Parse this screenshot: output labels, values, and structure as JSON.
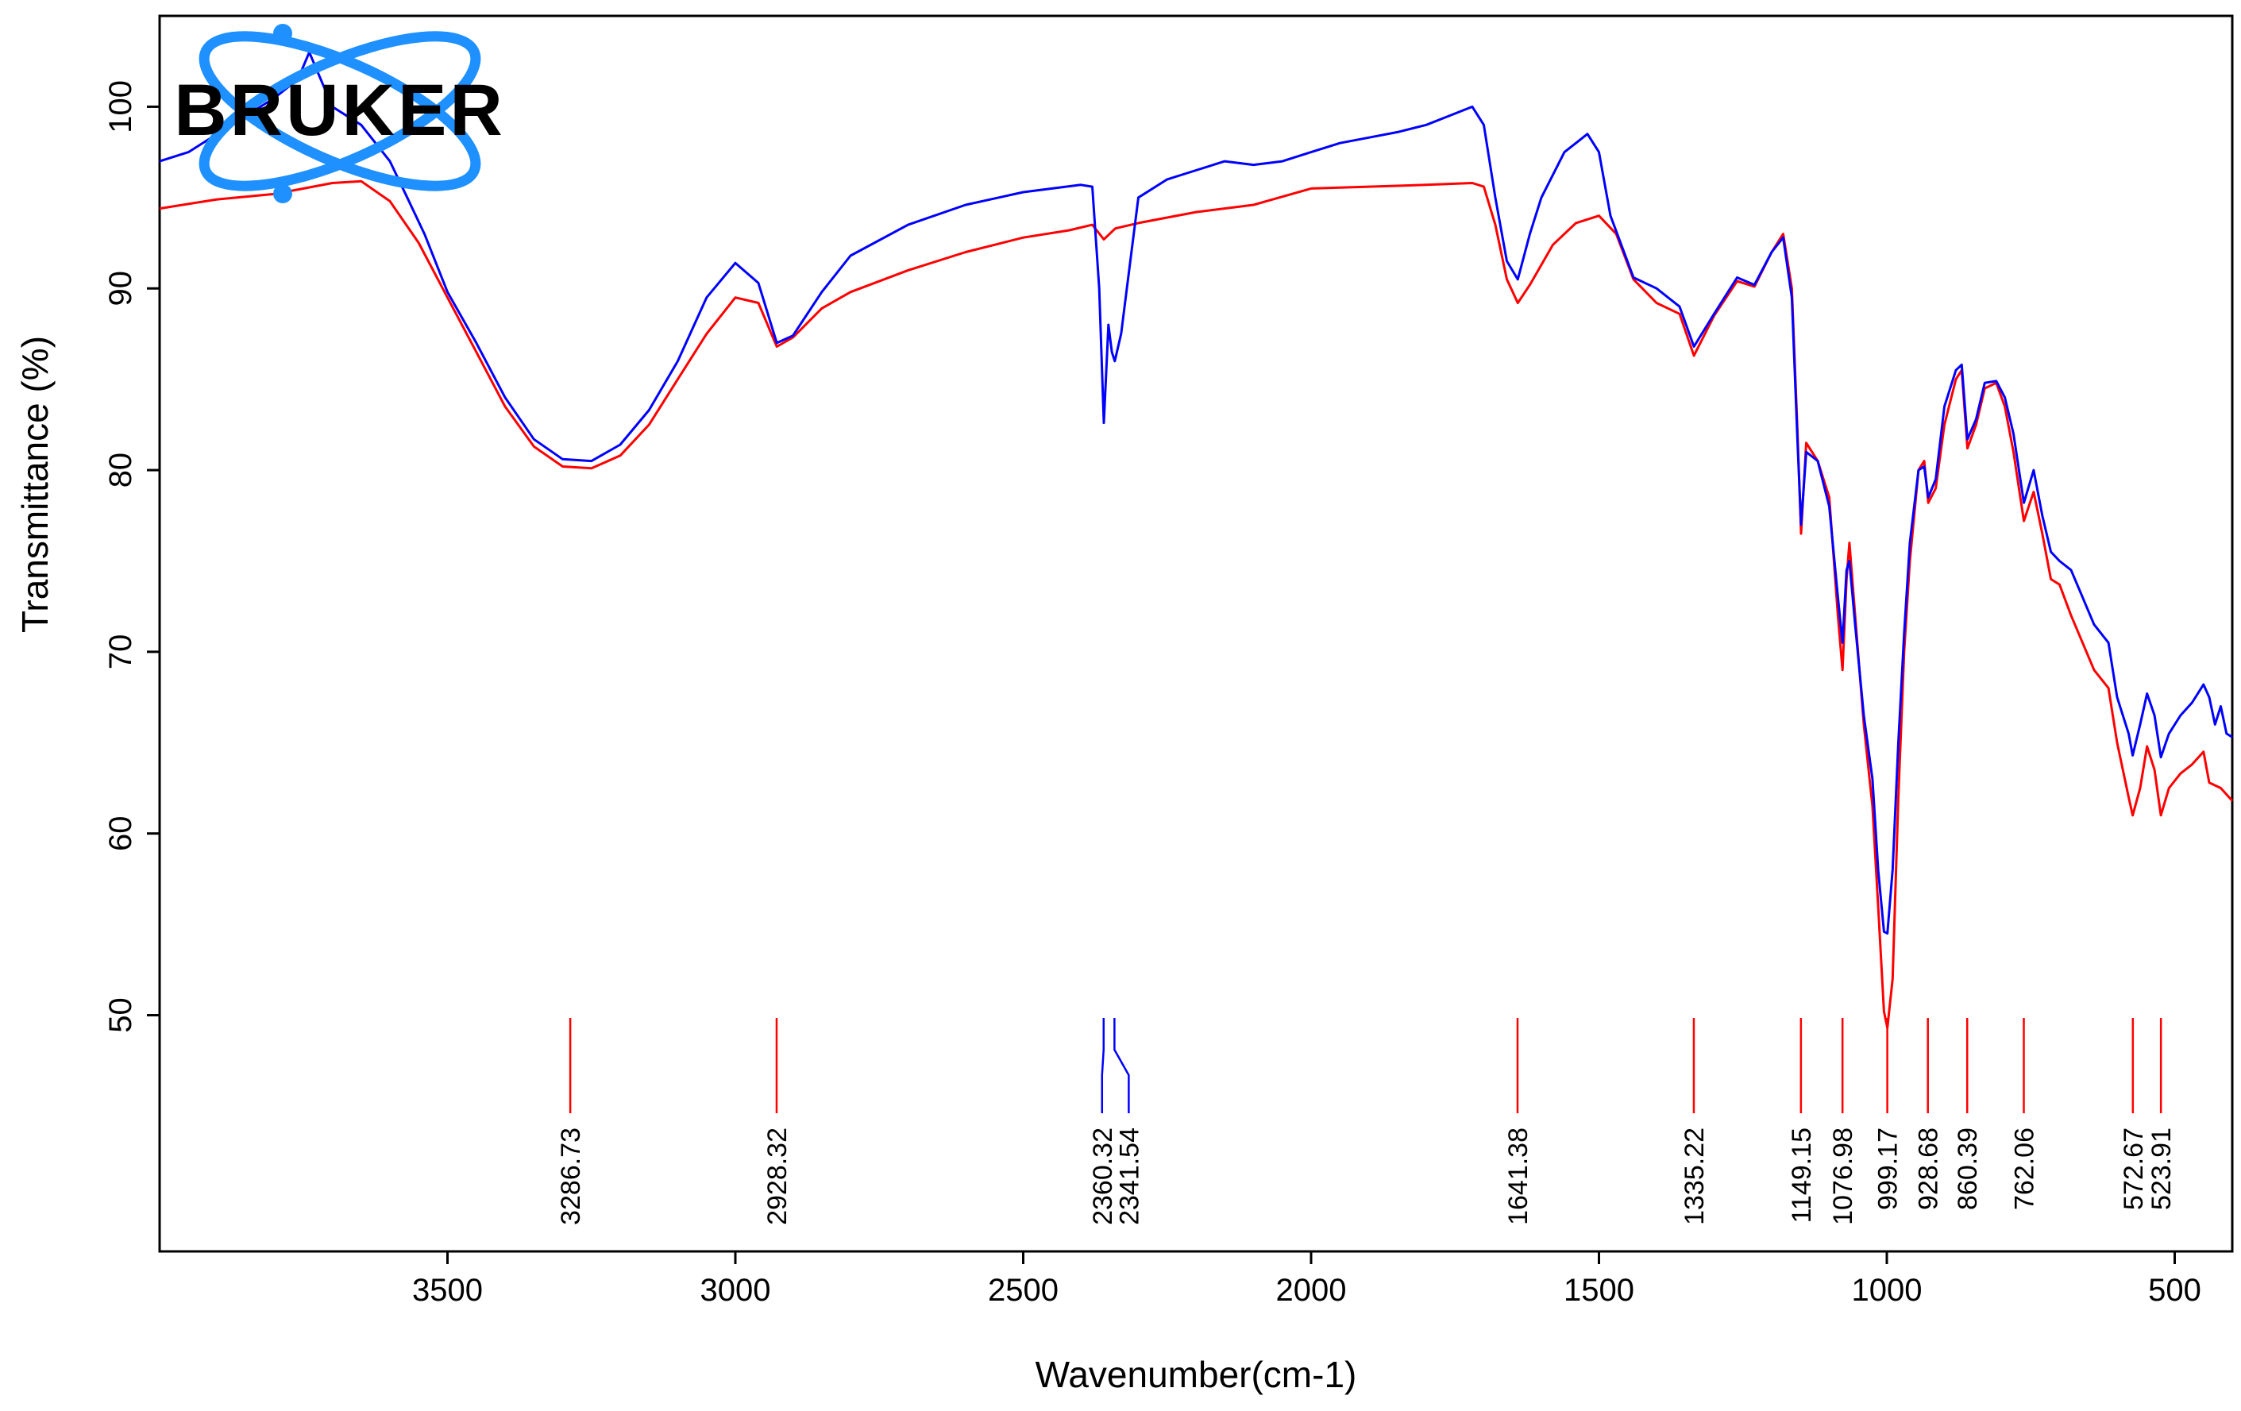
{
  "chart_data": {
    "type": "line",
    "title": "",
    "xlabel": "Wavenumber(cm-1)",
    "ylabel": "Transmittance (%)",
    "xlim": [
      4000,
      400
    ],
    "ylim": [
      37,
      105
    ],
    "x_reversed": true,
    "x_ticks": [
      3500,
      3000,
      2500,
      2000,
      1500,
      1000,
      500
    ],
    "y_ticks": [
      50,
      60,
      70,
      80,
      90,
      100
    ],
    "grid": false,
    "legend": "none",
    "logo_text": "BRUKER",
    "series": [
      {
        "color": "#ff0000",
        "points": [
          [
            4000,
            94.4
          ],
          [
            3900,
            94.9
          ],
          [
            3800,
            95.2
          ],
          [
            3750,
            95.5
          ],
          [
            3700,
            95.8
          ],
          [
            3650,
            95.9
          ],
          [
            3600,
            94.8
          ],
          [
            3550,
            92.5
          ],
          [
            3500,
            89.5
          ],
          [
            3450,
            86.5
          ],
          [
            3400,
            83.5
          ],
          [
            3350,
            81.3
          ],
          [
            3300,
            80.2
          ],
          [
            3250,
            80.1
          ],
          [
            3200,
            80.8
          ],
          [
            3150,
            82.5
          ],
          [
            3100,
            85.0
          ],
          [
            3050,
            87.5
          ],
          [
            3000,
            89.5
          ],
          [
            2960,
            89.2
          ],
          [
            2928,
            86.8
          ],
          [
            2900,
            87.3
          ],
          [
            2850,
            88.9
          ],
          [
            2800,
            89.8
          ],
          [
            2700,
            91.0
          ],
          [
            2600,
            92.0
          ],
          [
            2500,
            92.8
          ],
          [
            2420,
            93.2
          ],
          [
            2380,
            93.5
          ],
          [
            2360,
            92.7
          ],
          [
            2340,
            93.3
          ],
          [
            2300,
            93.6
          ],
          [
            2200,
            94.2
          ],
          [
            2100,
            94.6
          ],
          [
            2000,
            95.5
          ],
          [
            1900,
            95.6
          ],
          [
            1800,
            95.7
          ],
          [
            1720,
            95.8
          ],
          [
            1700,
            95.6
          ],
          [
            1680,
            93.5
          ],
          [
            1660,
            90.5
          ],
          [
            1641,
            89.2
          ],
          [
            1620,
            90.2
          ],
          [
            1580,
            92.4
          ],
          [
            1540,
            93.6
          ],
          [
            1500,
            94.0
          ],
          [
            1470,
            93.0
          ],
          [
            1440,
            90.5
          ],
          [
            1400,
            89.2
          ],
          [
            1360,
            88.6
          ],
          [
            1335,
            86.3
          ],
          [
            1300,
            88.5
          ],
          [
            1260,
            90.4
          ],
          [
            1230,
            90.1
          ],
          [
            1200,
            92.0
          ],
          [
            1180,
            93.0
          ],
          [
            1165,
            90.0
          ],
          [
            1155,
            82.0
          ],
          [
            1149,
            76.5
          ],
          [
            1140,
            81.5
          ],
          [
            1120,
            80.5
          ],
          [
            1100,
            78.5
          ],
          [
            1085,
            72.0
          ],
          [
            1077,
            69.0
          ],
          [
            1070,
            74.0
          ],
          [
            1065,
            76.0
          ],
          [
            1055,
            72.0
          ],
          [
            1040,
            66.0
          ],
          [
            1025,
            61.5
          ],
          [
            1015,
            56.0
          ],
          [
            1005,
            50.2
          ],
          [
            999,
            49.3
          ],
          [
            990,
            52.0
          ],
          [
            980,
            62.0
          ],
          [
            970,
            70.0
          ],
          [
            960,
            75.0
          ],
          [
            945,
            80.0
          ],
          [
            935,
            80.5
          ],
          [
            928,
            78.2
          ],
          [
            915,
            79.0
          ],
          [
            900,
            82.5
          ],
          [
            880,
            85.0
          ],
          [
            870,
            85.5
          ],
          [
            860,
            81.2
          ],
          [
            845,
            82.5
          ],
          [
            830,
            84.5
          ],
          [
            810,
            84.8
          ],
          [
            795,
            83.5
          ],
          [
            780,
            81.0
          ],
          [
            762,
            77.2
          ],
          [
            745,
            78.8
          ],
          [
            730,
            76.5
          ],
          [
            715,
            74.0
          ],
          [
            700,
            73.7
          ],
          [
            680,
            72.0
          ],
          [
            660,
            70.5
          ],
          [
            640,
            69.0
          ],
          [
            615,
            68.0
          ],
          [
            600,
            65.0
          ],
          [
            580,
            62.0
          ],
          [
            573,
            61.0
          ],
          [
            560,
            62.5
          ],
          [
            548,
            64.8
          ],
          [
            535,
            63.5
          ],
          [
            524,
            61.0
          ],
          [
            510,
            62.5
          ],
          [
            490,
            63.3
          ],
          [
            470,
            63.8
          ],
          [
            450,
            64.5
          ],
          [
            440,
            62.8
          ],
          [
            420,
            62.5
          ],
          [
            400,
            61.8
          ]
        ]
      },
      {
        "color": "#0000ff",
        "points": [
          [
            4000,
            97.0
          ],
          [
            3950,
            97.5
          ],
          [
            3900,
            98.5
          ],
          [
            3850,
            99.5
          ],
          [
            3800,
            100.5
          ],
          [
            3760,
            101.5
          ],
          [
            3740,
            103.0
          ],
          [
            3700,
            100.0
          ],
          [
            3650,
            99.0
          ],
          [
            3600,
            97.0
          ],
          [
            3570,
            95.0
          ],
          [
            3540,
            93.0
          ],
          [
            3500,
            89.8
          ],
          [
            3450,
            87.0
          ],
          [
            3400,
            84.0
          ],
          [
            3350,
            81.7
          ],
          [
            3300,
            80.6
          ],
          [
            3250,
            80.5
          ],
          [
            3200,
            81.4
          ],
          [
            3150,
            83.3
          ],
          [
            3100,
            86.0
          ],
          [
            3050,
            89.5
          ],
          [
            3000,
            91.4
          ],
          [
            2960,
            90.3
          ],
          [
            2928,
            87.0
          ],
          [
            2900,
            87.4
          ],
          [
            2850,
            89.8
          ],
          [
            2800,
            91.8
          ],
          [
            2700,
            93.5
          ],
          [
            2600,
            94.6
          ],
          [
            2500,
            95.3
          ],
          [
            2400,
            95.7
          ],
          [
            2380,
            95.6
          ],
          [
            2368,
            90.0
          ],
          [
            2360,
            82.6
          ],
          [
            2352,
            88.0
          ],
          [
            2346,
            86.5
          ],
          [
            2341,
            86.0
          ],
          [
            2330,
            87.5
          ],
          [
            2320,
            90.0
          ],
          [
            2300,
            95.0
          ],
          [
            2250,
            96.0
          ],
          [
            2200,
            96.5
          ],
          [
            2150,
            97.0
          ],
          [
            2100,
            96.8
          ],
          [
            2050,
            97.0
          ],
          [
            2000,
            97.5
          ],
          [
            1950,
            98.0
          ],
          [
            1900,
            98.3
          ],
          [
            1850,
            98.6
          ],
          [
            1800,
            99.0
          ],
          [
            1760,
            99.5
          ],
          [
            1720,
            100.0
          ],
          [
            1700,
            99.0
          ],
          [
            1680,
            95.0
          ],
          [
            1660,
            91.5
          ],
          [
            1641,
            90.5
          ],
          [
            1620,
            93.0
          ],
          [
            1600,
            95.0
          ],
          [
            1560,
            97.5
          ],
          [
            1540,
            98.0
          ],
          [
            1520,
            98.5
          ],
          [
            1500,
            97.5
          ],
          [
            1480,
            94.0
          ],
          [
            1440,
            90.6
          ],
          [
            1400,
            90.0
          ],
          [
            1360,
            89.0
          ],
          [
            1335,
            86.8
          ],
          [
            1300,
            88.6
          ],
          [
            1260,
            90.6
          ],
          [
            1230,
            90.2
          ],
          [
            1200,
            92.0
          ],
          [
            1180,
            92.8
          ],
          [
            1165,
            89.5
          ],
          [
            1155,
            81.5
          ],
          [
            1149,
            77.0
          ],
          [
            1140,
            81.0
          ],
          [
            1120,
            80.5
          ],
          [
            1100,
            78.0
          ],
          [
            1085,
            73.0
          ],
          [
            1077,
            70.5
          ],
          [
            1070,
            74.5
          ],
          [
            1065,
            75.0
          ],
          [
            1055,
            71.5
          ],
          [
            1040,
            66.5
          ],
          [
            1025,
            63.0
          ],
          [
            1015,
            58.0
          ],
          [
            1005,
            54.6
          ],
          [
            999,
            54.5
          ],
          [
            990,
            58.0
          ],
          [
            980,
            65.0
          ],
          [
            970,
            71.0
          ],
          [
            960,
            76.0
          ],
          [
            945,
            80.0
          ],
          [
            935,
            80.2
          ],
          [
            928,
            78.5
          ],
          [
            915,
            79.5
          ],
          [
            900,
            83.5
          ],
          [
            880,
            85.5
          ],
          [
            870,
            85.8
          ],
          [
            860,
            81.7
          ],
          [
            845,
            82.8
          ],
          [
            830,
            84.8
          ],
          [
            810,
            84.9
          ],
          [
            795,
            84.0
          ],
          [
            780,
            82.0
          ],
          [
            762,
            78.2
          ],
          [
            745,
            80.0
          ],
          [
            730,
            77.5
          ],
          [
            715,
            75.5
          ],
          [
            700,
            75.0
          ],
          [
            680,
            74.5
          ],
          [
            660,
            73.0
          ],
          [
            640,
            71.5
          ],
          [
            615,
            70.5
          ],
          [
            600,
            67.5
          ],
          [
            580,
            65.5
          ],
          [
            573,
            64.3
          ],
          [
            560,
            66.0
          ],
          [
            548,
            67.7
          ],
          [
            535,
            66.5
          ],
          [
            524,
            64.2
          ],
          [
            510,
            65.5
          ],
          [
            490,
            66.5
          ],
          [
            470,
            67.2
          ],
          [
            450,
            68.2
          ],
          [
            440,
            67.5
          ],
          [
            430,
            66.0
          ],
          [
            420,
            67.0
          ],
          [
            410,
            65.5
          ],
          [
            400,
            65.3
          ]
        ]
      }
    ],
    "peak_labels": [
      {
        "x": 3286.73,
        "label": "3286.73",
        "color": "#ff0000"
      },
      {
        "x": 2928.32,
        "label": "2928.32",
        "color": "#ff0000"
      },
      {
        "x": 2360.32,
        "label": "2360.32",
        "color": "#0000ff"
      },
      {
        "x": 2341.54,
        "label": "2341.54",
        "color": "#0000ff"
      },
      {
        "x": 1641.38,
        "label": "1641.38",
        "color": "#ff0000"
      },
      {
        "x": 1335.22,
        "label": "1335.22",
        "color": "#ff0000"
      },
      {
        "x": 1149.15,
        "label": "1149.15",
        "color": "#ff0000"
      },
      {
        "x": 1076.98,
        "label": "1076.98",
        "color": "#ff0000"
      },
      {
        "x": 999.17,
        "label": "999.17",
        "color": "#ff0000"
      },
      {
        "x": 928.68,
        "label": "928.68",
        "color": "#ff0000"
      },
      {
        "x": 860.39,
        "label": "860.39",
        "color": "#ff0000"
      },
      {
        "x": 762.06,
        "label": "762.06",
        "color": "#ff0000"
      },
      {
        "x": 572.67,
        "label": "572.67",
        "color": "#ff0000"
      },
      {
        "x": 523.91,
        "label": "523.91",
        "color": "#ff0000"
      }
    ]
  }
}
